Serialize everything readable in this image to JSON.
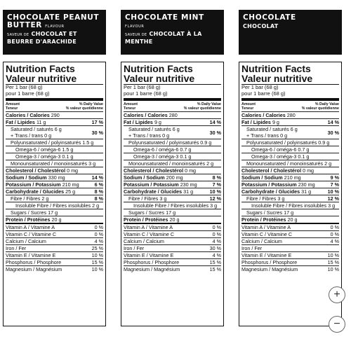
{
  "panels": [
    {
      "title_en": "CHOCOLATE PEANUT BUTTER",
      "flavour": "FLAVOUR",
      "title_fr_pre": "SAVEUR DE",
      "title_fr": "CHOCOLAT ET BEURRE D'ARACHIDE",
      "calories": "290",
      "fat": "11 g",
      "fat_dv": "17 %",
      "sat": "6 g",
      "trans": "0 g",
      "sat_dv": "30 %",
      "poly": "1.5 g",
      "omega6": "1.5 g",
      "omega3": "0.1 g",
      "mono": "3 g",
      "chol": "0 mg",
      "sodium": "330 mg",
      "sodium_dv": "14 %",
      "potassium": "210 mg",
      "potassium_dv": "6 %",
      "carb": "25 g",
      "carb_dv": "8 %",
      "fibre": "2 g",
      "fibre_dv": "8 %",
      "insol": "2 g",
      "sugars": "17 g",
      "protein": "20 g",
      "vita": "0 %",
      "vitc": "0 %",
      "calcium": "4 %",
      "iron": "25 %",
      "vite": "10 %",
      "phos": "15 %",
      "mag": "10 %"
    },
    {
      "title_en": "CHOCOLATE MINT",
      "flavour": "FLAVOUR",
      "title_fr_pre": "SAVEUR DE",
      "title_fr": "CHOCOLAT À LA MENTHE",
      "calories": "280",
      "fat": "9 g",
      "fat_dv": "14 %",
      "sat": "6 g",
      "trans": "0 g",
      "sat_dv": "30 %",
      "poly": "0.9 g",
      "omega6": "0.7 g",
      "omega3": "0.1 g",
      "mono": "2 g",
      "chol": "0 mg",
      "sodium": "200 mg",
      "sodium_dv": "8 %",
      "potassium": "230 mg",
      "potassium_dv": "7 %",
      "carb": "31 g",
      "carb_dv": "10 %",
      "fibre": "3 g",
      "fibre_dv": "12 %",
      "insol": "3 g",
      "sugars": "17 g",
      "protein": "20 g",
      "vita": "0 %",
      "vitc": "0 %",
      "calcium": "4 %",
      "iron": "30 %",
      "vite": "4 %",
      "phos": "15 %",
      "mag": "15 %"
    },
    {
      "title_en": "CHOCOLATE",
      "flavour": "",
      "title_fr_pre": "",
      "title_fr": "CHOCOLAT",
      "calories": "280",
      "fat": "9 g",
      "fat_dv": "14 %",
      "sat": "6 g",
      "trans": "0 g",
      "sat_dv": "30 %",
      "poly": "0.9 g",
      "omega6": "0.7 g",
      "omega3": "0.1 g",
      "mono": "2 g",
      "chol": "0 mg",
      "sodium": "210 mg",
      "sodium_dv": "9 %",
      "potassium": "230 mg",
      "potassium_dv": "7 %",
      "carb": "31 g",
      "carb_dv": "10 %",
      "fibre": "3 g",
      "fibre_dv": "12 %",
      "insol": "3 g",
      "sugars": "17 g",
      "protein": "20 g",
      "vita": "0 %",
      "vitc": "0 %",
      "calcium": "4 %",
      "iron": "",
      "vite": "10 %",
      "phos": "15 %",
      "mag": "10 %"
    }
  ],
  "labels": {
    "nf_en": "Nutrition Facts",
    "nf_fr": "Valeur nutritive",
    "per_en": "Per 1 bar (68 g)",
    "per_fr": "pour 1 barre (68 g)",
    "amount": "Amount",
    "teneur": "Teneur",
    "dv_en": "% Daily Value",
    "dv_fr": "% valeur quotidienne",
    "calories": "Calories / Calories",
    "fat": "Fat / Lipides",
    "sat": "Saturated / saturés",
    "trans": "+ Trans / trans",
    "poly": "Polyunsaturated / polyinsaturés",
    "omega6": "Omega-6 / oméga-6",
    "omega3": "Omega-3 / oméga-3",
    "mono": "Monounsaturated / monoinsaturés",
    "chol": "Cholesterol / Cholestérol",
    "sodium": "Sodium / Sodium",
    "potassium": "Potassium / Potassium",
    "carb": "Carbohydrate / Glucides",
    "fibre": "Fibre / Fibres",
    "insol": "Insoluble Fibre / Fibres insolubles",
    "sugars": "Sugars / Sucres",
    "protein": "Protein / Protéines",
    "vita": "Vitamin A / Vitamine A",
    "vitc": "Vitamin C / Vitamine C",
    "calcium": "Calcium / Calcium",
    "iron": "Iron / Fer",
    "vite": "Vitamin E / Vitamine E",
    "phos": "Phosphorus / Phosphore",
    "mag": "Magnesium / Magnésium"
  },
  "zoom": {
    "in": "+",
    "out": "−"
  }
}
